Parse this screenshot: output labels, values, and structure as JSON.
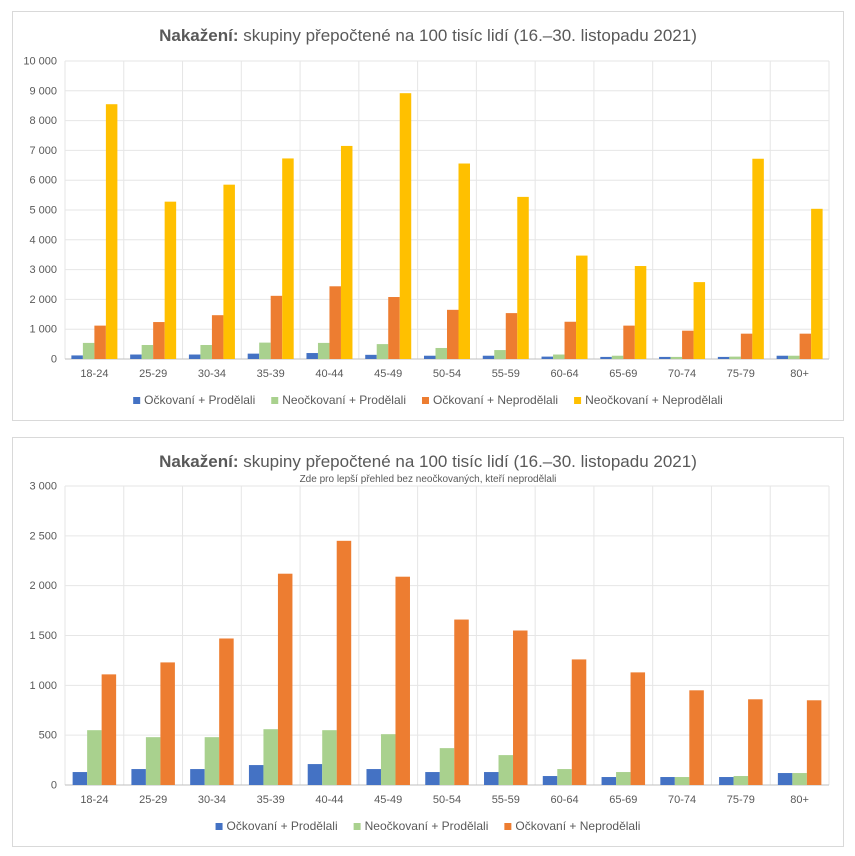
{
  "chart_data": [
    {
      "type": "bar",
      "title_bold": "Nakažení:",
      "title_rest": " skupiny přepočtené na 100 tisíc lidí (16.–30. listopadu 2021)",
      "subtitle": "",
      "categories": [
        "18-24",
        "25-29",
        "30-34",
        "35-39",
        "40-44",
        "45-49",
        "50-54",
        "55-59",
        "60-64",
        "65-69",
        "70-74",
        "75-79",
        "80+"
      ],
      "ylim": [
        0,
        10000
      ],
      "yticks": [
        "0",
        "1 000",
        "2 000",
        "3 000",
        "4 000",
        "5 000",
        "6 000",
        "7 000",
        "8 000",
        "9 000",
        "10 000"
      ],
      "series": [
        {
          "name": "Očkovaní + Prodělali",
          "color": "#4472C4",
          "values": [
            120,
            150,
            150,
            180,
            200,
            140,
            110,
            110,
            80,
            70,
            70,
            70,
            110
          ]
        },
        {
          "name": "Neočkovaní + Prodělali",
          "color": "#A9D18E",
          "values": [
            540,
            470,
            470,
            550,
            540,
            500,
            370,
            300,
            150,
            110,
            70,
            80,
            110
          ]
        },
        {
          "name": "Očkovaní + Neprodělali",
          "color": "#ED7D31",
          "values": [
            1120,
            1240,
            1470,
            2120,
            2440,
            2080,
            1650,
            1540,
            1250,
            1120,
            950,
            850,
            850
          ]
        },
        {
          "name": "Neočkovaní + Neprodělali",
          "color": "#FFC000",
          "values": [
            8550,
            5280,
            5850,
            6730,
            7150,
            8920,
            6560,
            5440,
            3470,
            3120,
            2580,
            6720,
            5040
          ]
        }
      ]
    },
    {
      "type": "bar",
      "title_bold": "Nakažení:",
      "title_rest": " skupiny přepočtené na 100 tisíc lidí (16.–30. listopadu 2021)",
      "subtitle": "Zde pro lepší přehled bez neočkovaných, kteří neprodělali",
      "categories": [
        "18-24",
        "25-29",
        "30-34",
        "35-39",
        "40-44",
        "45-49",
        "50-54",
        "55-59",
        "60-64",
        "65-69",
        "70-74",
        "75-79",
        "80+"
      ],
      "ylim": [
        0,
        3000
      ],
      "yticks": [
        "0",
        "500",
        "1 000",
        "1 500",
        "2 000",
        "2 500",
        "3 000"
      ],
      "series": [
        {
          "name": "Očkovaní + Prodělali",
          "color": "#4472C4",
          "values": [
            130,
            160,
            160,
            200,
            210,
            160,
            130,
            130,
            90,
            80,
            80,
            80,
            120
          ]
        },
        {
          "name": "Neočkovaní + Prodělali",
          "color": "#A9D18E",
          "values": [
            550,
            480,
            480,
            560,
            550,
            510,
            370,
            300,
            160,
            130,
            80,
            90,
            120
          ]
        },
        {
          "name": "Očkovaní + Neprodělali",
          "color": "#ED7D31",
          "values": [
            1110,
            1230,
            1470,
            2120,
            2450,
            2090,
            1660,
            1550,
            1260,
            1130,
            950,
            860,
            850
          ]
        }
      ]
    }
  ]
}
